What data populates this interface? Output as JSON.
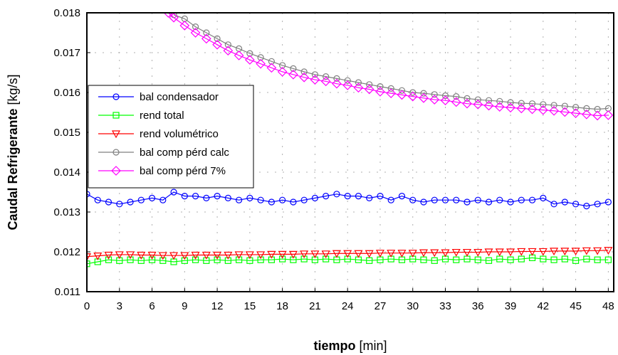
{
  "chart_data": {
    "type": "line",
    "xlabel_bold": "tiempo",
    "xlabel_unit": " [min]",
    "ylabel_bold": "Caudal Refrigerante",
    "ylabel_unit": " [kg/s]",
    "xlim": [
      0,
      48.5
    ],
    "ylim": [
      0.011,
      0.018
    ],
    "x_ticks": [
      0,
      3,
      6,
      9,
      12,
      15,
      18,
      21,
      24,
      27,
      30,
      33,
      36,
      39,
      42,
      45,
      48
    ],
    "y_ticks": [
      0.011,
      0.012,
      0.013,
      0.014,
      0.015,
      0.016,
      0.017,
      0.018
    ],
    "y_tick_labels": [
      "0.011",
      "0.012",
      "0.013",
      "0.014",
      "0.015",
      "0.016",
      "0.017",
      "0.018"
    ],
    "grid": "dotted",
    "legend": "upper-left",
    "series": [
      {
        "name": "bal condensador",
        "color": "#0000ff",
        "marker": "circle",
        "x": [
          0,
          1,
          2,
          3,
          4,
          5,
          6,
          7,
          8,
          9,
          10,
          11,
          12,
          13,
          14,
          15,
          16,
          17,
          18,
          19,
          20,
          21,
          22,
          23,
          24,
          25,
          26,
          27,
          28,
          29,
          30,
          31,
          32,
          33,
          34,
          35,
          36,
          37,
          38,
          39,
          40,
          41,
          42,
          43,
          44,
          45,
          46,
          47,
          48
        ],
        "y": [
          0.01345,
          0.0133,
          0.01325,
          0.0132,
          0.01325,
          0.0133,
          0.01335,
          0.0133,
          0.0135,
          0.0134,
          0.0134,
          0.01335,
          0.0134,
          0.01335,
          0.0133,
          0.01335,
          0.0133,
          0.01325,
          0.0133,
          0.01325,
          0.0133,
          0.01335,
          0.0134,
          0.01345,
          0.0134,
          0.0134,
          0.01335,
          0.0134,
          0.0133,
          0.0134,
          0.0133,
          0.01325,
          0.0133,
          0.0133,
          0.0133,
          0.01325,
          0.0133,
          0.01325,
          0.0133,
          0.01325,
          0.0133,
          0.0133,
          0.01335,
          0.0132,
          0.01325,
          0.0132,
          0.01315,
          0.0132,
          0.01325
        ]
      },
      {
        "name": "rend total",
        "color": "#00ff00",
        "marker": "square",
        "x": [
          0,
          1,
          2,
          3,
          4,
          5,
          6,
          7,
          8,
          9,
          10,
          11,
          12,
          13,
          14,
          15,
          16,
          17,
          18,
          19,
          20,
          21,
          22,
          23,
          24,
          25,
          26,
          27,
          28,
          29,
          30,
          31,
          32,
          33,
          34,
          35,
          36,
          37,
          38,
          39,
          40,
          41,
          42,
          43,
          44,
          45,
          46,
          47,
          48
        ],
        "y": [
          0.0117,
          0.01175,
          0.0118,
          0.01178,
          0.0118,
          0.01178,
          0.0118,
          0.01178,
          0.01175,
          0.01178,
          0.0118,
          0.01178,
          0.0118,
          0.01178,
          0.0118,
          0.01178,
          0.0118,
          0.0118,
          0.01182,
          0.0118,
          0.01182,
          0.0118,
          0.01182,
          0.0118,
          0.01182,
          0.0118,
          0.01178,
          0.0118,
          0.01182,
          0.0118,
          0.01182,
          0.0118,
          0.01178,
          0.01182,
          0.0118,
          0.01182,
          0.0118,
          0.01178,
          0.01182,
          0.0118,
          0.01182,
          0.01185,
          0.01182,
          0.0118,
          0.01182,
          0.01178,
          0.01182,
          0.0118,
          0.0118
        ]
      },
      {
        "name": "rend volumétrico",
        "color": "#ff0000",
        "marker": "triangle-down",
        "x": [
          0,
          1,
          2,
          3,
          4,
          5,
          6,
          7,
          8,
          9,
          10,
          11,
          12,
          13,
          14,
          15,
          16,
          17,
          18,
          19,
          20,
          21,
          22,
          23,
          24,
          25,
          26,
          27,
          28,
          29,
          30,
          31,
          32,
          33,
          34,
          35,
          36,
          37,
          38,
          39,
          40,
          41,
          42,
          43,
          44,
          45,
          46,
          47,
          48
        ],
        "y": [
          0.01188,
          0.0119,
          0.01192,
          0.01193,
          0.01193,
          0.01192,
          0.01192,
          0.01191,
          0.01191,
          0.01191,
          0.01192,
          0.01192,
          0.01192,
          0.01192,
          0.01193,
          0.01193,
          0.01193,
          0.01194,
          0.01194,
          0.01194,
          0.01195,
          0.01195,
          0.01195,
          0.01196,
          0.01196,
          0.01196,
          0.01196,
          0.01197,
          0.01197,
          0.01197,
          0.01197,
          0.01198,
          0.01198,
          0.01198,
          0.01199,
          0.01199,
          0.01199,
          0.012,
          0.012,
          0.012,
          0.01201,
          0.01201,
          0.01201,
          0.01202,
          0.01202,
          0.01202,
          0.01203,
          0.01203,
          0.01204
        ]
      },
      {
        "name": "bal comp pérd calc",
        "color": "#808080",
        "marker": "circle",
        "x": [
          8,
          9,
          10,
          11,
          12,
          13,
          14,
          15,
          16,
          17,
          18,
          19,
          20,
          21,
          22,
          23,
          24,
          25,
          26,
          27,
          28,
          29,
          30,
          31,
          32,
          33,
          34,
          35,
          36,
          37,
          38,
          39,
          40,
          41,
          42,
          43,
          44,
          45,
          46,
          47,
          48
        ],
        "y": [
          0.01795,
          0.01785,
          0.01765,
          0.0175,
          0.01735,
          0.0172,
          0.0171,
          0.01698,
          0.01688,
          0.01678,
          0.01668,
          0.0166,
          0.01652,
          0.01645,
          0.0164,
          0.01635,
          0.0163,
          0.01625,
          0.0162,
          0.01615,
          0.0161,
          0.01605,
          0.016,
          0.01598,
          0.01595,
          0.01592,
          0.0159,
          0.01585,
          0.01582,
          0.0158,
          0.01578,
          0.01575,
          0.01573,
          0.01572,
          0.0157,
          0.01568,
          0.01566,
          0.01563,
          0.0156,
          0.01558,
          0.0156
        ]
      },
      {
        "name": "bal comp pérd 7%",
        "color": "#ff00ff",
        "marker": "diamond",
        "x": [
          7.5,
          8,
          9,
          10,
          11,
          12,
          13,
          14,
          15,
          16,
          17,
          18,
          19,
          20,
          21,
          22,
          23,
          24,
          25,
          26,
          27,
          28,
          29,
          30,
          31,
          32,
          33,
          34,
          35,
          36,
          37,
          38,
          39,
          40,
          41,
          42,
          43,
          44,
          45,
          46,
          47,
          48
        ],
        "y": [
          0.018,
          0.01788,
          0.01768,
          0.0175,
          0.01735,
          0.0172,
          0.01705,
          0.01693,
          0.01682,
          0.01672,
          0.01662,
          0.01652,
          0.01645,
          0.01638,
          0.01632,
          0.01628,
          0.01622,
          0.01618,
          0.01612,
          0.01608,
          0.01602,
          0.01598,
          0.01594,
          0.0159,
          0.01586,
          0.01582,
          0.0158,
          0.01576,
          0.01572,
          0.0157,
          0.01567,
          0.01564,
          0.01562,
          0.0156,
          0.01558,
          0.01556,
          0.01554,
          0.01551,
          0.01548,
          0.01545,
          0.01542,
          0.01543
        ]
      }
    ]
  }
}
